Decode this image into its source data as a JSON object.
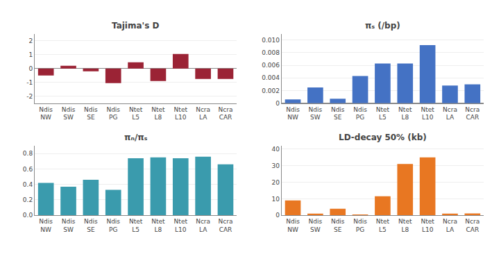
{
  "chart_data": [
    {
      "type": "bar",
      "title": "Tajima's D",
      "categories": [
        "Ndis\nNW",
        "Ndis\nSW",
        "Ndis\nSE",
        "Ndis\nPG",
        "Ntet\nL5",
        "Ntet\nL8",
        "Ntet\nL10",
        "Ncra\nLA",
        "Ncra\nCAR"
      ],
      "values": [
        -0.5,
        0.2,
        -0.2,
        -1.05,
        0.45,
        -0.9,
        1.05,
        -0.75,
        -0.75
      ],
      "color": "#9B2335",
      "ylim": [
        -2.5,
        2.5
      ],
      "yticks": [
        -2,
        -1,
        0,
        1,
        2
      ],
      "grid": true
    },
    {
      "type": "bar",
      "title": "πₛ (/bp)",
      "categories": [
        "Ndis\nNW",
        "Ndis\nSW",
        "Ndis\nSE",
        "Ndis\nPG",
        "Ntet\nL5",
        "Ntet\nL8",
        "Ntet\nL10",
        "Ncra\nLA",
        "Ncra\nCAR"
      ],
      "values": [
        0.0006,
        0.0025,
        0.0007,
        0.0043,
        0.0063,
        0.0063,
        0.0092,
        0.0028,
        0.003
      ],
      "color": "#4472C4",
      "ylim": [
        0,
        0.011
      ],
      "yticks": [
        0,
        0.002,
        0.004,
        0.006,
        0.008,
        {
          "value": 0.01,
          "label": "0.010"
        }
      ],
      "grid": true
    },
    {
      "type": "bar",
      "title": "πₙ/πₛ",
      "categories": [
        "Ndis\nNW",
        "Ndis\nSW",
        "Ndis\nSE",
        "Ndis\nPG",
        "Ntet\nL5",
        "Ntet\nL8",
        "Ntet\nL10",
        "Ncra\nLA",
        "Ncra\nCAR"
      ],
      "values": [
        0.42,
        0.37,
        0.46,
        0.33,
        0.74,
        0.75,
        0.74,
        0.76,
        0.66
      ],
      "color": "#3A9BAD",
      "ylim": [
        0,
        0.9
      ],
      "yticks": [
        {
          "value": 0,
          "label": "0.0"
        },
        0.2,
        0.4,
        0.6,
        0.8
      ],
      "grid": true
    },
    {
      "type": "bar",
      "title": "LD-decay 50% (kb)",
      "categories": [
        "Ndis\nNW",
        "Ndis\nSW",
        "Ndis\nSE",
        "Ndis\nPG",
        "Ntet\nL5",
        "Ntet\nL8",
        "Ntet\nL10",
        "Ncra\nLA",
        "Ncra\nCAR"
      ],
      "values": [
        9.0,
        1.0,
        4.0,
        0.3,
        11.5,
        31.0,
        35.0,
        1.0,
        1.2
      ],
      "color": "#E87722",
      "ylim": [
        0,
        42
      ],
      "yticks": [
        0,
        10,
        20,
        30,
        40
      ],
      "grid": true
    }
  ]
}
